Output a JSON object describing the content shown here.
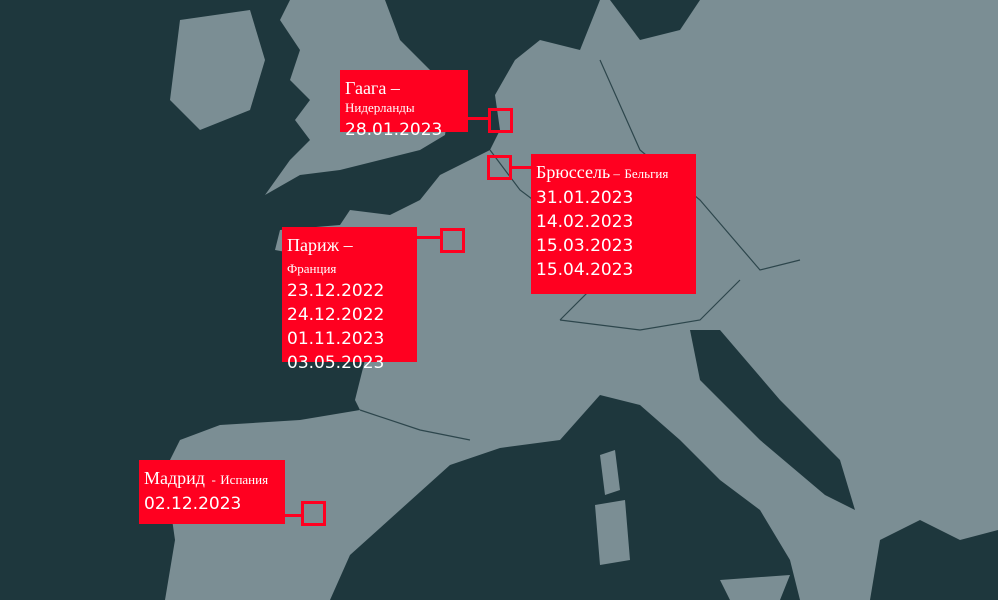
{
  "colors": {
    "sea": "#1e373d",
    "land": "#7b8e94",
    "accent": "#ff0020",
    "text": "#ffffff"
  },
  "markers": [
    {
      "city": "Гаага",
      "sep": " –",
      "country": "Нидерланды",
      "dates": [
        "28.01.2023"
      ]
    },
    {
      "city": "Брюссель",
      "sep": " –",
      "country": "Бельгия",
      "dates": [
        "31.01.2023",
        "14.02.2023",
        "15.03.2023",
        "15.04.2023"
      ]
    },
    {
      "city": "Париж",
      "sep": " –",
      "country": "Франция",
      "dates": [
        "23.12.2022",
        "24.12.2022",
        "01.11.2023",
        "03.05.2023"
      ]
    },
    {
      "city": "Мадрид",
      "sep": "  -",
      "country": "Испания",
      "dates": [
        "02.12.2023"
      ]
    }
  ]
}
